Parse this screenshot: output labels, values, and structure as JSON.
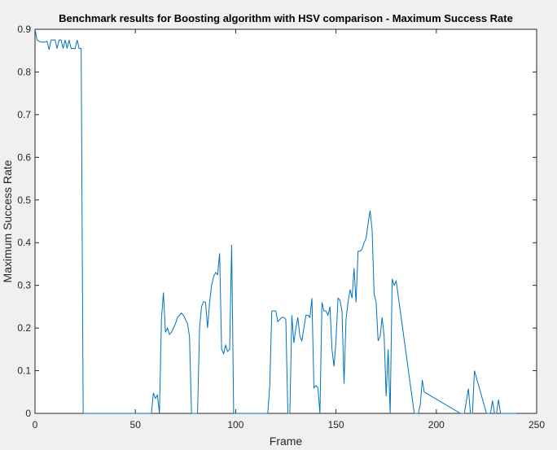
{
  "chart_data": {
    "type": "line",
    "title": "Benchmark results for Boosting algorithm with HSV comparison - Maximum Success Rate",
    "xlabel": "Frame",
    "ylabel": "Maximum Success Rate",
    "xlim": [
      0,
      250
    ],
    "ylim": [
      0,
      0.9
    ],
    "xticks": [
      "0",
      "50",
      "100",
      "150",
      "200",
      "250"
    ],
    "yticks": [
      "0",
      "0.1",
      "0.2",
      "0.3",
      "0.4",
      "0.5",
      "0.6",
      "0.7",
      "0.8",
      "0.9"
    ],
    "grid": false,
    "line_color": "#0072bd",
    "series": [
      {
        "x": [
          0,
          1,
          2,
          3,
          4,
          5,
          6,
          7,
          8,
          9,
          10,
          11,
          12,
          13,
          14,
          15,
          16,
          17,
          18,
          19,
          20,
          21,
          22,
          23,
          24,
          25,
          58,
          59,
          60,
          61,
          62,
          63,
          64,
          65,
          66,
          67,
          68,
          69,
          70,
          71,
          72,
          73,
          74,
          75,
          76,
          77,
          78,
          79,
          80,
          81,
          82,
          83,
          84,
          85,
          86,
          87,
          88,
          89,
          90,
          91,
          92,
          93,
          94,
          95,
          96,
          97,
          98,
          99,
          100,
          116,
          117,
          118,
          119,
          120,
          121,
          122,
          123,
          124,
          125,
          126,
          127,
          128,
          129,
          130,
          131,
          132,
          133,
          134,
          135,
          136,
          137,
          138,
          139,
          140,
          141,
          142,
          143,
          144,
          145,
          146,
          147,
          148,
          149,
          150,
          151,
          152,
          153,
          154,
          155,
          156,
          157,
          158,
          159,
          160,
          161,
          162,
          163,
          164,
          165,
          166,
          167,
          168,
          169,
          170,
          171,
          172,
          173,
          174,
          175,
          176,
          177,
          178,
          179,
          180,
          189,
          190,
          191,
          192,
          193,
          194,
          212,
          213,
          214,
          215,
          216,
          217,
          218,
          219,
          225,
          226,
          227,
          228,
          229,
          230,
          231,
          232,
          240
        ],
        "y": [
          0.9,
          0.875,
          0.872,
          0.87,
          0.87,
          0.87,
          0.872,
          0.852,
          0.875,
          0.875,
          0.875,
          0.855,
          0.875,
          0.875,
          0.855,
          0.875,
          0.855,
          0.875,
          0.855,
          0.855,
          0.855,
          0.875,
          0.855,
          0.855,
          0.0,
          0.0,
          0.0,
          0.048,
          0.035,
          0.043,
          0.0,
          0.22,
          0.283,
          0.19,
          0.2,
          0.185,
          0.19,
          0.2,
          0.21,
          0.225,
          0.23,
          0.235,
          0.23,
          0.22,
          0.21,
          0.18,
          0.0,
          0.0,
          0.0,
          0.0,
          0.2,
          0.25,
          0.262,
          0.26,
          0.2,
          0.26,
          0.3,
          0.32,
          0.33,
          0.325,
          0.375,
          0.15,
          0.14,
          0.16,
          0.145,
          0.15,
          0.395,
          0.0,
          0.0,
          0.0,
          0.065,
          0.24,
          0.24,
          0.24,
          0.215,
          0.22,
          0.225,
          0.225,
          0.22,
          0.0,
          0.0,
          0.23,
          0.165,
          0.2,
          0.225,
          0.18,
          0.17,
          0.2,
          0.23,
          0.23,
          0.225,
          0.27,
          0.06,
          0.065,
          0.06,
          0.0,
          0.26,
          0.24,
          0.24,
          0.23,
          0.25,
          0.15,
          0.11,
          0.17,
          0.27,
          0.265,
          0.24,
          0.07,
          0.22,
          0.26,
          0.29,
          0.27,
          0.34,
          0.26,
          0.38,
          0.38,
          0.385,
          0.4,
          0.41,
          0.445,
          0.475,
          0.43,
          0.28,
          0.26,
          0.17,
          0.18,
          0.225,
          0.18,
          0.04,
          0.15,
          0.0,
          0.315,
          0.3,
          0.31,
          0.0,
          0.0,
          0.0,
          0.02,
          0.078,
          0.05,
          0.0,
          0.0,
          0.0,
          0.03,
          0.058,
          0.0,
          0.0,
          0.1,
          0.0,
          0.0,
          0.0,
          0.03,
          0.0,
          0.0,
          0.032,
          0.0,
          0.0
        ]
      }
    ]
  }
}
